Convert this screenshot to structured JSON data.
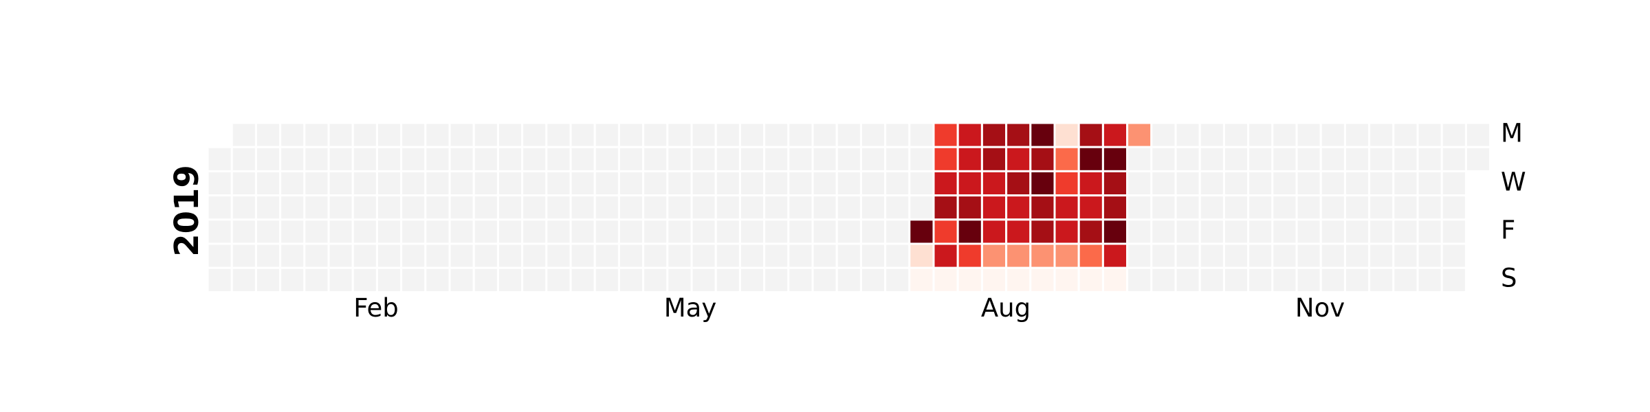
{
  "chart_data": {
    "type": "heatmap",
    "title": "",
    "year": "2019",
    "month_labels": [
      "Feb",
      "May",
      "Aug",
      "Nov"
    ],
    "weekday_labels": [
      "M",
      "W",
      "F",
      "S"
    ],
    "colors": {
      "empty": "#f3f3f3",
      "scale": [
        "#fff5f0",
        "#fee0d2",
        "#fcbba1",
        "#fc9272",
        "#fb6a4a",
        "#ef3b2c",
        "#cb181d",
        "#a50f15",
        "#67000d"
      ]
    },
    "x_axis_start": "2019-01-01",
    "rows_order": [
      "Mon",
      "Tue",
      "Wed",
      "Thu",
      "Fri",
      "Sat",
      "Sun"
    ],
    "values_by_week": [
      {
        "week_start": "2019-07-22",
        "values": [
          null,
          null,
          null,
          null,
          8,
          1,
          0
        ]
      },
      {
        "week_start": "2019-07-29",
        "values": [
          5,
          5,
          6,
          7,
          5,
          6,
          0
        ]
      },
      {
        "week_start": "2019-08-05",
        "values": [
          6,
          6,
          6,
          7,
          8,
          5,
          0
        ]
      },
      {
        "week_start": "2019-08-12",
        "values": [
          7,
          7,
          6,
          6,
          6,
          3,
          0
        ]
      },
      {
        "week_start": "2019-08-19",
        "values": [
          7,
          6,
          7,
          6,
          6,
          3,
          0
        ]
      },
      {
        "week_start": "2019-08-26",
        "values": [
          8,
          7,
          8,
          7,
          7,
          3,
          0
        ]
      },
      {
        "week_start": "2019-09-02",
        "values": [
          1,
          4,
          5,
          6,
          6,
          3,
          0
        ]
      },
      {
        "week_start": "2019-09-09",
        "values": [
          7,
          8,
          6,
          6,
          7,
          4,
          0
        ]
      },
      {
        "week_start": "2019-09-16",
        "values": [
          6,
          8,
          7,
          7,
          8,
          6,
          0
        ]
      },
      {
        "week_start": "2019-09-23",
        "values": [
          3,
          null,
          null,
          null,
          null,
          null,
          null
        ]
      }
    ]
  }
}
